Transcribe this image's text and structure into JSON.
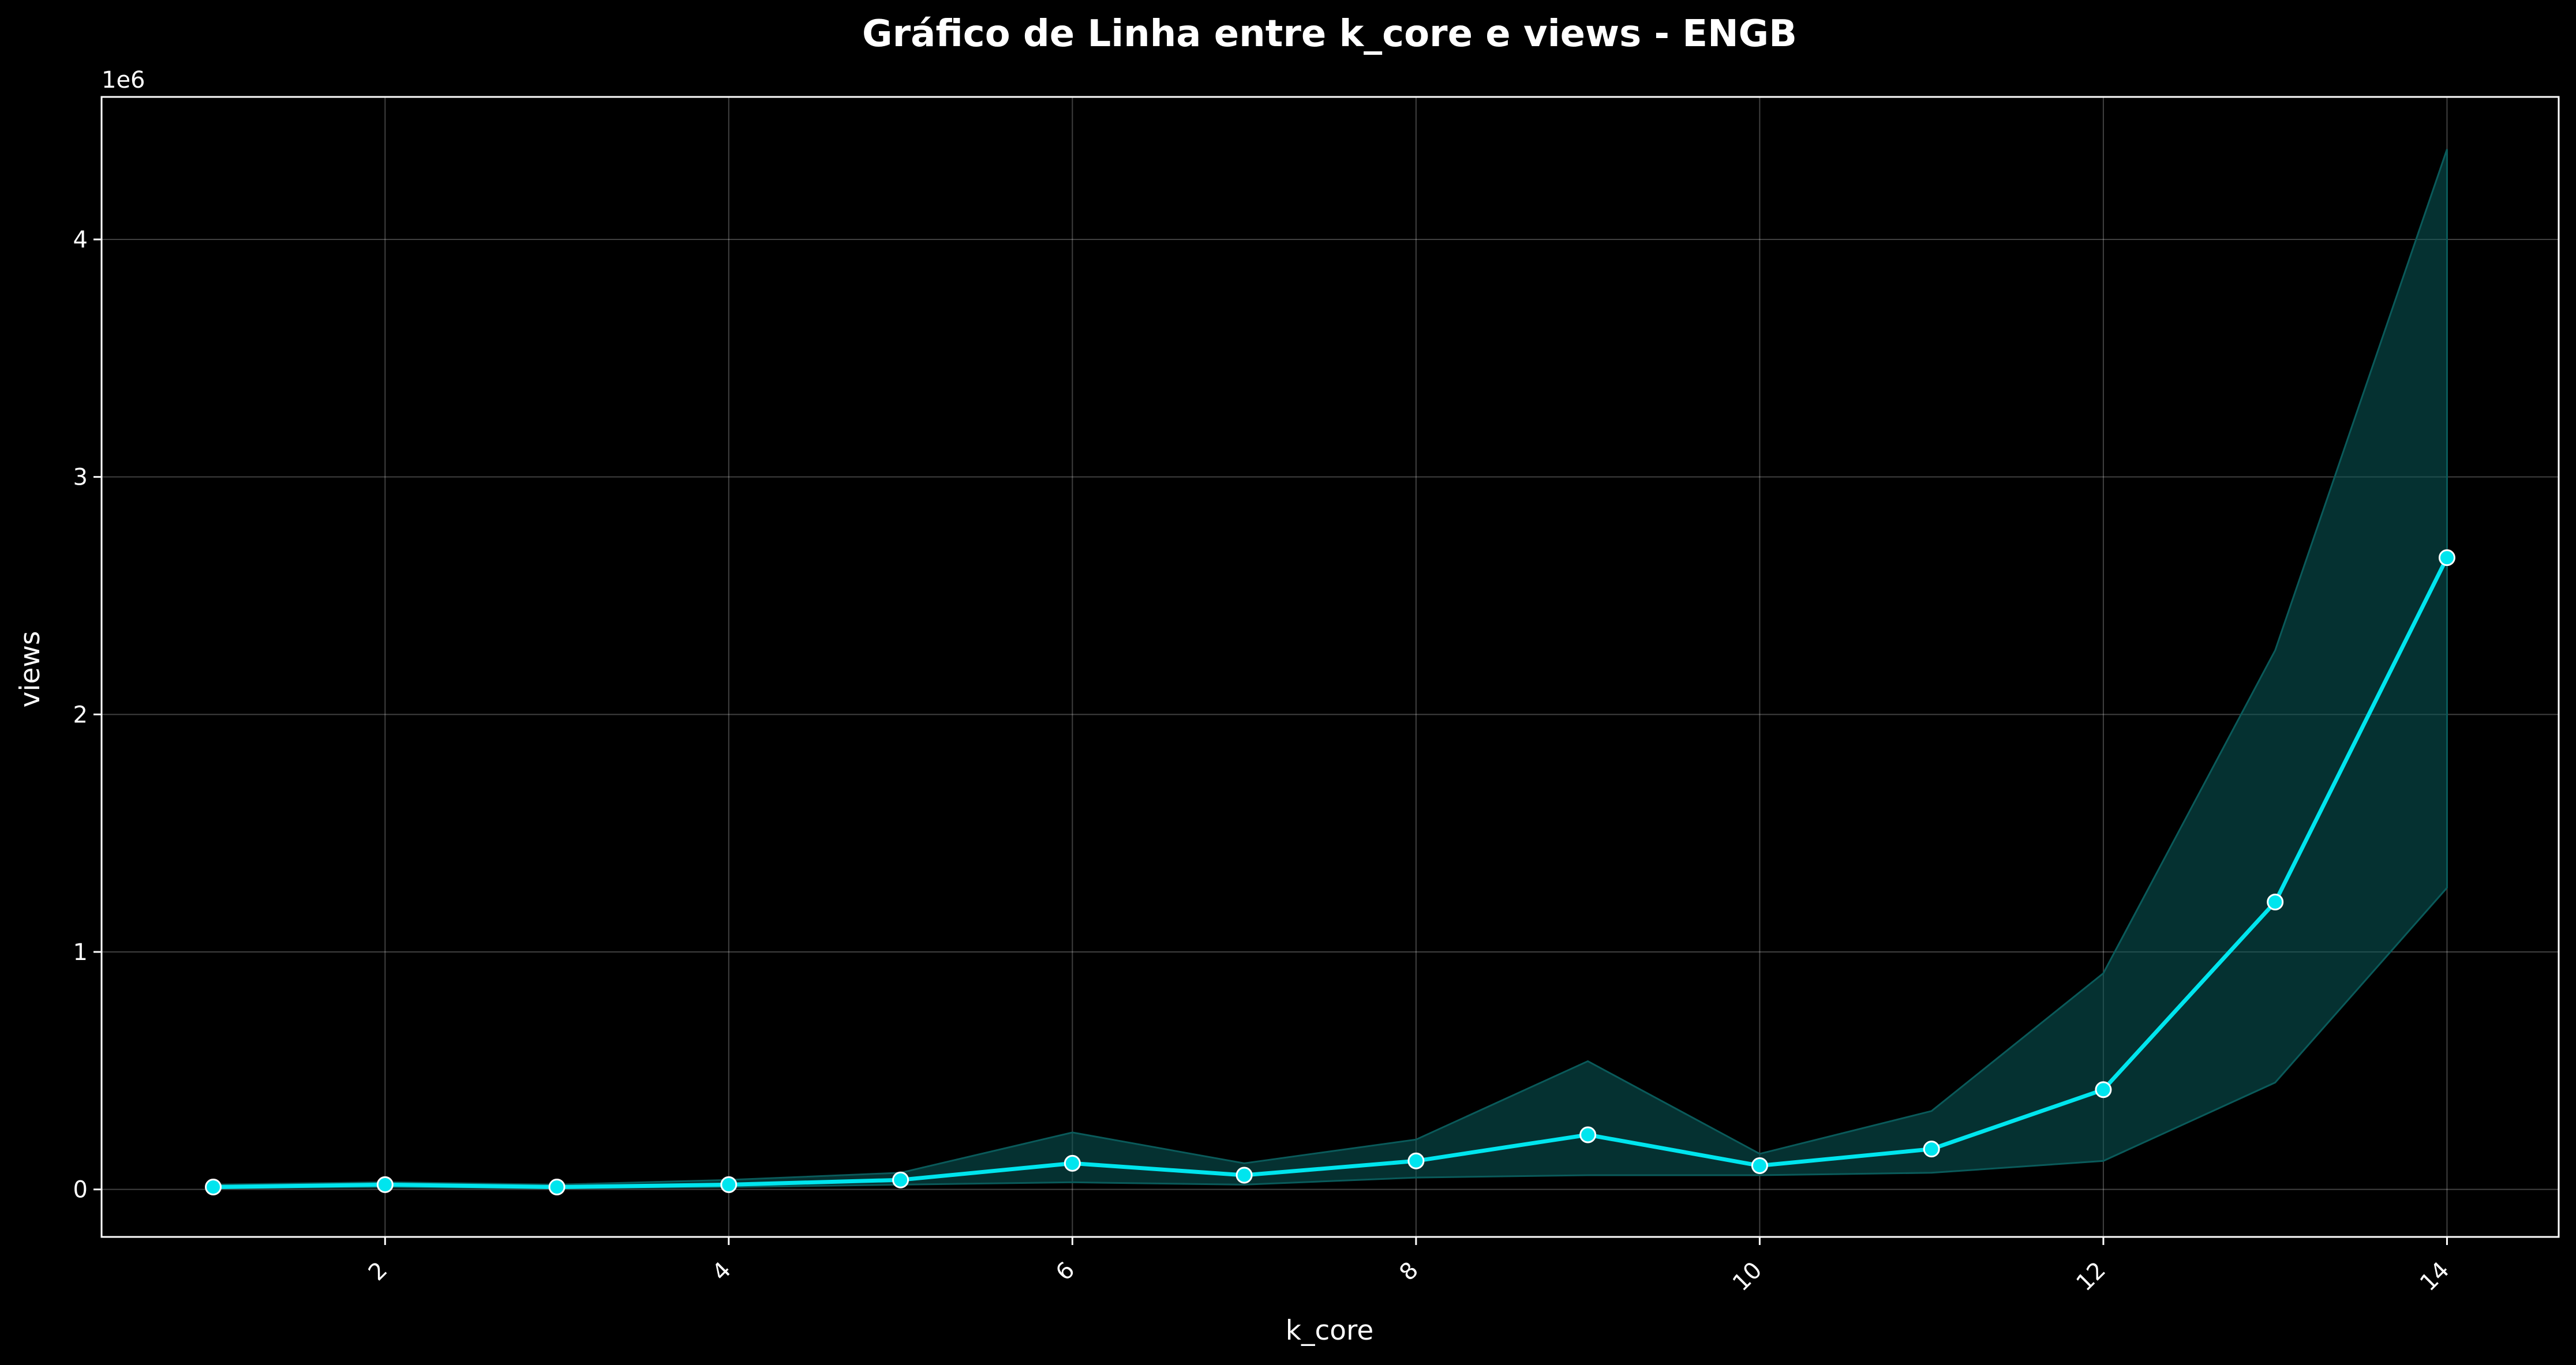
{
  "chart_data": {
    "type": "line",
    "title": "Gráfico de Linha entre k_core e views - ENGB",
    "xlabel": "k_core",
    "ylabel": "views",
    "y_offset_label": "1e6",
    "x_ticks": [
      2,
      4,
      6,
      8,
      10,
      12,
      14
    ],
    "y_ticks": [
      0,
      1,
      2,
      3,
      4
    ],
    "y_tick_labels": [
      "0",
      "1",
      "2",
      "3",
      "4"
    ],
    "x_tick_rotation_deg": 45,
    "xlim": [
      0.35,
      14.65
    ],
    "ylim": [
      -0.2,
      4.6
    ],
    "y_unit_multiplier": 1000000,
    "grid": true,
    "series": [
      {
        "x": [
          1,
          2,
          3,
          4,
          5,
          6,
          7,
          8,
          9,
          10,
          11,
          12,
          13,
          14
        ],
        "values": [
          0.01,
          0.02,
          0.01,
          0.02,
          0.04,
          0.11,
          0.06,
          0.12,
          0.23,
          0.1,
          0.17,
          0.42,
          1.21,
          2.66
        ],
        "ci_lower": [
          0.005,
          0.01,
          0.005,
          0.01,
          0.02,
          0.03,
          0.02,
          0.05,
          0.06,
          0.06,
          0.07,
          0.12,
          0.45,
          1.27
        ],
        "ci_upper": [
          0.02,
          0.03,
          0.02,
          0.04,
          0.07,
          0.24,
          0.11,
          0.21,
          0.54,
          0.15,
          0.33,
          0.91,
          2.27,
          4.38
        ]
      }
    ],
    "colors": {
      "line": "#00e5ee",
      "marker_fill": "#00e5ee",
      "marker_edge": "#ffffff",
      "band": "#0a5a5a",
      "grid": "#ffffff",
      "frame": "#ffffff",
      "background": "#000000"
    }
  }
}
